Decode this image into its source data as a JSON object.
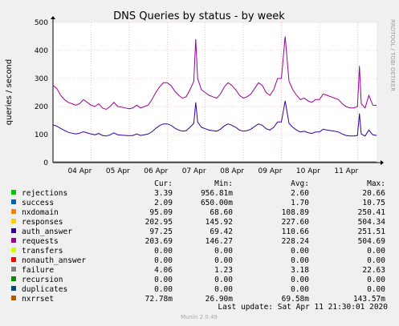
{
  "chart_data": {
    "type": "line",
    "title": "DNS Queries by status - by week",
    "ylabel": "queries / second",
    "ylim": [
      0,
      500
    ],
    "yticks": [
      0,
      100,
      200,
      300,
      400,
      500
    ],
    "xlim": [
      0,
      8
    ],
    "xtick_labels": [
      "04 Apr",
      "05 Apr",
      "06 Apr",
      "07 Apr",
      "08 Apr",
      "09 Apr",
      "10 Apr",
      "11 Apr"
    ],
    "xtick_positions": [
      1,
      2,
      3,
      4,
      5,
      6,
      7,
      8
    ],
    "grid": true,
    "side_label": "RRDTOOL / TOBI OETIKER",
    "series": [
      {
        "name": "requests",
        "color": "#990099",
        "x": [
          0.0,
          0.1,
          0.2,
          0.3,
          0.4,
          0.5,
          0.6,
          0.7,
          0.8,
          0.9,
          1.0,
          1.1,
          1.2,
          1.3,
          1.4,
          1.5,
          1.6,
          1.7,
          1.8,
          1.9,
          2.0,
          2.1,
          2.2,
          2.3,
          2.4,
          2.5,
          2.6,
          2.7,
          2.8,
          2.9,
          3.0,
          3.1,
          3.2,
          3.3,
          3.4,
          3.5,
          3.6,
          3.7,
          3.75,
          3.8,
          3.9,
          4.0,
          4.1,
          4.2,
          4.3,
          4.4,
          4.5,
          4.6,
          4.7,
          4.8,
          4.9,
          5.0,
          5.1,
          5.2,
          5.3,
          5.4,
          5.5,
          5.6,
          5.7,
          5.8,
          5.9,
          6.0,
          6.1,
          6.2,
          6.3,
          6.4,
          6.5,
          6.6,
          6.7,
          6.8,
          6.9,
          7.0,
          7.1,
          7.2,
          7.3,
          7.4,
          7.5,
          7.6,
          7.7,
          7.8,
          7.9,
          8.0,
          8.05,
          8.1,
          8.2,
          8.3,
          8.4,
          8.5
        ],
        "values": [
          275,
          265,
          240,
          225,
          215,
          210,
          205,
          210,
          225,
          215,
          205,
          200,
          210,
          195,
          190,
          200,
          215,
          200,
          198,
          195,
          192,
          195,
          205,
          195,
          200,
          205,
          225,
          250,
          270,
          285,
          285,
          275,
          255,
          240,
          230,
          235,
          260,
          290,
          440,
          300,
          260,
          250,
          240,
          235,
          230,
          245,
          270,
          285,
          275,
          260,
          240,
          230,
          235,
          245,
          265,
          285,
          275,
          250,
          240,
          260,
          300,
          300,
          450,
          290,
          260,
          240,
          225,
          230,
          220,
          215,
          225,
          225,
          245,
          240,
          235,
          230,
          225,
          210,
          200,
          195,
          195,
          200,
          345,
          210,
          195,
          240,
          205,
          204
        ]
      },
      {
        "name": "auth_answer",
        "color": "#330099",
        "x": [
          0.0,
          0.1,
          0.2,
          0.3,
          0.4,
          0.5,
          0.6,
          0.7,
          0.8,
          0.9,
          1.0,
          1.1,
          1.2,
          1.3,
          1.4,
          1.5,
          1.6,
          1.7,
          1.8,
          1.9,
          2.0,
          2.1,
          2.2,
          2.3,
          2.4,
          2.5,
          2.6,
          2.7,
          2.8,
          2.9,
          3.0,
          3.1,
          3.2,
          3.3,
          3.4,
          3.5,
          3.6,
          3.7,
          3.75,
          3.8,
          3.9,
          4.0,
          4.1,
          4.2,
          4.3,
          4.4,
          4.5,
          4.6,
          4.7,
          4.8,
          4.9,
          5.0,
          5.1,
          5.2,
          5.3,
          5.4,
          5.5,
          5.6,
          5.7,
          5.8,
          5.9,
          6.0,
          6.1,
          6.2,
          6.3,
          6.4,
          6.5,
          6.6,
          6.7,
          6.8,
          6.9,
          7.0,
          7.1,
          7.2,
          7.3,
          7.4,
          7.5,
          7.6,
          7.7,
          7.8,
          7.9,
          8.0,
          8.05,
          8.1,
          8.2,
          8.3,
          8.4,
          8.5
        ],
        "values": [
          135,
          130,
          122,
          115,
          108,
          105,
          102,
          105,
          110,
          106,
          102,
          99,
          104,
          97,
          95,
          99,
          106,
          99,
          98,
          97,
          96,
          97,
          102,
          97,
          99,
          102,
          110,
          122,
          132,
          138,
          138,
          133,
          123,
          116,
          112,
          114,
          126,
          140,
          215,
          145,
          126,
          121,
          116,
          114,
          112,
          119,
          131,
          138,
          133,
          126,
          116,
          112,
          114,
          119,
          129,
          138,
          133,
          121,
          116,
          126,
          145,
          145,
          220,
          140,
          126,
          116,
          109,
          112,
          107,
          104,
          109,
          109,
          119,
          116,
          114,
          112,
          109,
          102,
          97,
          95,
          95,
          97,
          175,
          102,
          95,
          116,
          99,
          97
        ]
      }
    ]
  },
  "legend": {
    "headers": [
      "Cur:",
      "Min:",
      "Avg:",
      "Max:"
    ],
    "rows": [
      {
        "name": "rejections",
        "color": "#00cc00",
        "cur": "3.39",
        "min": "956.81m",
        "avg": "2.60",
        "max": "20.66"
      },
      {
        "name": "success",
        "color": "#0066b3",
        "cur": "2.09",
        "min": "650.00m",
        "avg": "1.70",
        "max": "10.75"
      },
      {
        "name": "nxdomain",
        "color": "#ff8000",
        "cur": "95.09",
        "min": "68.60",
        "avg": "108.89",
        "max": "250.41"
      },
      {
        "name": "responses",
        "color": "#ffcc00",
        "cur": "202.95",
        "min": "145.92",
        "avg": "227.60",
        "max": "504.34"
      },
      {
        "name": "auth_answer",
        "color": "#330099",
        "cur": "97.25",
        "min": "69.42",
        "avg": "110.66",
        "max": "251.51"
      },
      {
        "name": "requests",
        "color": "#990099",
        "cur": "203.69",
        "min": "146.27",
        "avg": "228.24",
        "max": "504.69"
      },
      {
        "name": "transfers",
        "color": "#ccff00",
        "cur": "0.00",
        "min": "0.00",
        "avg": "0.00",
        "max": "0.00"
      },
      {
        "name": "nonauth_answer",
        "color": "#ff0000",
        "cur": "0.00",
        "min": "0.00",
        "avg": "0.00",
        "max": "0.00"
      },
      {
        "name": "failure",
        "color": "#808080",
        "cur": "4.06",
        "min": "1.23",
        "avg": "3.18",
        "max": "22.63"
      },
      {
        "name": "recursion",
        "color": "#008f00",
        "cur": "0.00",
        "min": "0.00",
        "avg": "0.00",
        "max": "0.00"
      },
      {
        "name": "duplicates",
        "color": "#00487d",
        "cur": "0.00",
        "min": "0.00",
        "avg": "0.00",
        "max": "0.00"
      },
      {
        "name": "nxrrset",
        "color": "#b35a00",
        "cur": "72.78m",
        "min": "26.90m",
        "avg": "69.58m",
        "max": "143.57m"
      }
    ]
  },
  "footer": {
    "last_update": "Last update: Sat Apr 11 21:30:01 2020",
    "munin": "Munin 2.0.49"
  }
}
